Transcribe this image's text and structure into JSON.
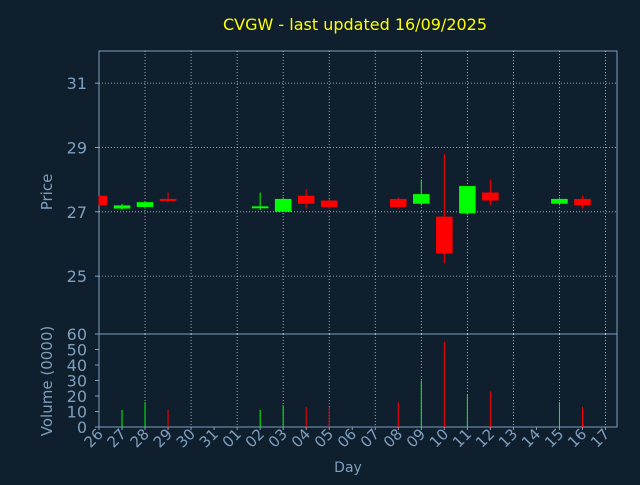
{
  "chart_data": {
    "type": "candlestick",
    "title": "CVGW - last updated 16/09/2025",
    "xlabel": "Day",
    "price_ylabel": "Price",
    "volume_ylabel": "Volume (0000)",
    "x_tick_labels": [
      "26",
      "27",
      "28",
      "29",
      "30",
      "31",
      "01",
      "02",
      "03",
      "04",
      "05",
      "06",
      "07",
      "08",
      "09",
      "10",
      "11",
      "12",
      "13",
      "14",
      "15",
      "16",
      "17"
    ],
    "price_ylim": [
      23.2,
      32.0
    ],
    "price_ticks": [
      25,
      27,
      29,
      31
    ],
    "volume_ylim": [
      0,
      60
    ],
    "volume_ticks": [
      0,
      10,
      20,
      30,
      40,
      50,
      60
    ],
    "grid": true,
    "colors": {
      "background": "#0f1f2e",
      "title": "#ffff00",
      "axis_text": "#7f9fbf",
      "axis_line": "#7f9fbf",
      "grid": "#ffffff",
      "up": "#00ff00",
      "down": "#ff0000"
    },
    "candles": [
      {
        "day": "26",
        "open": 27.5,
        "high": 27.5,
        "low": 27.2,
        "close": 27.2,
        "volume": 0
      },
      {
        "day": "27",
        "open": 27.1,
        "high": 27.25,
        "low": 27.05,
        "close": 27.2,
        "volume": 11
      },
      {
        "day": "28",
        "open": 27.15,
        "high": 27.3,
        "low": 27.1,
        "close": 27.3,
        "volume": 16
      },
      {
        "day": "29",
        "open": 27.4,
        "high": 27.6,
        "low": 27.3,
        "close": 27.35,
        "volume": 11
      },
      {
        "day": "02",
        "open": 27.15,
        "high": 27.6,
        "low": 27.05,
        "close": 27.17,
        "volume": 11
      },
      {
        "day": "03",
        "open": 27.0,
        "high": 27.45,
        "low": 27.0,
        "close": 27.4,
        "volume": 14
      },
      {
        "day": "04",
        "open": 27.5,
        "high": 27.7,
        "low": 27.1,
        "close": 27.25,
        "volume": 13
      },
      {
        "day": "05",
        "open": 27.35,
        "high": 27.4,
        "low": 27.1,
        "close": 27.15,
        "volume": 13
      },
      {
        "day": "08",
        "open": 27.4,
        "high": 27.45,
        "low": 27.1,
        "close": 27.15,
        "volume": 16
      },
      {
        "day": "09",
        "open": 27.25,
        "high": 28.0,
        "low": 27.2,
        "close": 27.55,
        "volume": 30
      },
      {
        "day": "10",
        "open": 26.85,
        "high": 28.8,
        "low": 25.4,
        "close": 25.7,
        "volume": 55
      },
      {
        "day": "11",
        "open": 26.95,
        "high": 27.8,
        "low": 26.9,
        "close": 27.8,
        "volume": 21
      },
      {
        "day": "12",
        "open": 27.6,
        "high": 28.0,
        "low": 27.2,
        "close": 27.35,
        "volume": 23
      },
      {
        "day": "15",
        "open": 27.25,
        "high": 27.45,
        "low": 27.2,
        "close": 27.4,
        "volume": 16
      },
      {
        "day": "16",
        "open": 27.4,
        "high": 27.5,
        "low": 27.1,
        "close": 27.2,
        "volume": 13
      }
    ]
  }
}
